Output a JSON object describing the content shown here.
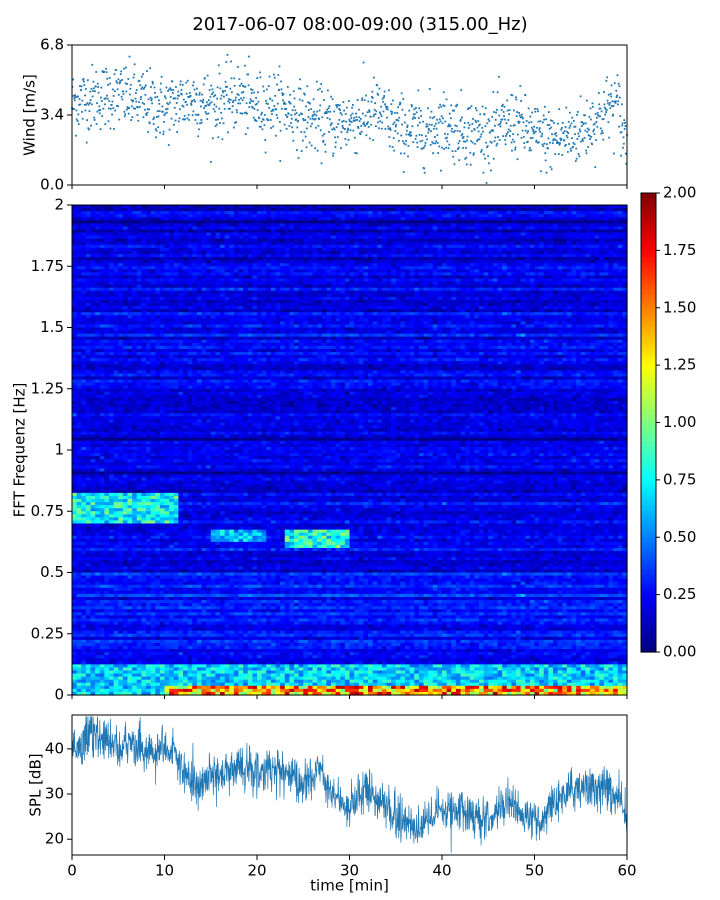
{
  "figure": {
    "title": "2017-06-07 08:00-09:00 (315.00_Hz)"
  },
  "chart_data": [
    {
      "panel": "wind",
      "type": "scatter",
      "ylabel": "Wind [m/s]",
      "ylim": [
        0.0,
        6.8
      ],
      "yticks": [
        0.0,
        3.4,
        6.8
      ],
      "ytick_labels": [
        "0.0",
        "3.4",
        "6.8"
      ],
      "xlim": [
        0,
        60
      ],
      "marker_color": "#1f77b4",
      "trend": {
        "x": [
          0,
          3,
          5,
          8,
          10,
          13,
          15,
          18,
          20,
          22,
          25,
          28,
          30,
          32,
          33,
          35,
          38,
          40,
          42,
          45,
          47,
          48,
          50,
          52,
          55,
          57,
          58,
          59,
          60
        ],
        "y": [
          4.0,
          4.3,
          4.4,
          4.0,
          3.7,
          4.2,
          3.9,
          4.3,
          3.8,
          4.0,
          3.3,
          3.0,
          3.1,
          3.4,
          3.6,
          2.8,
          2.6,
          3.0,
          2.7,
          2.5,
          2.9,
          3.1,
          2.4,
          2.2,
          2.6,
          3.3,
          3.8,
          3.9,
          1.8
        ]
      },
      "spread": 0.8
    },
    {
      "panel": "spectrogram",
      "type": "heatmap",
      "ylabel": "FFT Frequenz [Hz]",
      "ylim": [
        0,
        2
      ],
      "yticks": [
        0,
        0.25,
        0.5,
        0.75,
        1,
        1.25,
        1.5,
        1.75,
        2
      ],
      "ytick_labels": [
        "0",
        "0.25",
        "0.5",
        "0.75",
        "1",
        "1.25",
        "1.5",
        "1.75",
        "2"
      ],
      "xlim": [
        0,
        60
      ],
      "colormap": "jet",
      "colorbar": {
        "range": [
          0.0,
          2.0
        ],
        "ticks": [
          0.0,
          0.25,
          0.5,
          0.75,
          1.0,
          1.25,
          1.5,
          1.75,
          2.0
        ],
        "tick_labels": [
          "0.00",
          "0.25",
          "0.50",
          "0.75",
          "1.00",
          "1.25",
          "1.50",
          "1.75",
          "2.00"
        ]
      },
      "background_level": 0.2,
      "features": [
        {
          "t0": 0,
          "t1": 11.5,
          "f0": 0.7,
          "f1": 0.82,
          "level": 0.85
        },
        {
          "t0": 15,
          "t1": 21,
          "f0": 0.62,
          "f1": 0.68,
          "level": 0.7
        },
        {
          "t0": 23,
          "t1": 30,
          "f0": 0.6,
          "f1": 0.68,
          "level": 0.9
        },
        {
          "t0": 0,
          "t1": 60,
          "f0": 0,
          "f1": 0.12,
          "level": 0.75
        },
        {
          "t0": 10,
          "t1": 60,
          "f0": 0,
          "f1": 0.04,
          "level": 1.6
        }
      ]
    },
    {
      "panel": "spl",
      "type": "line",
      "ylabel": "SPL [dB]",
      "xlabel": "time [min]",
      "xlim": [
        0,
        60
      ],
      "ylim": [
        16.5,
        47.5
      ],
      "yticks": [
        20,
        30,
        40
      ],
      "ytick_labels": [
        "20",
        "30",
        "40"
      ],
      "xticks": [
        0,
        10,
        20,
        30,
        40,
        50,
        60
      ],
      "xtick_labels": [
        "0",
        "10",
        "20",
        "30",
        "40",
        "50",
        "60"
      ],
      "line_color": "#1f77b4",
      "trend": {
        "x": [
          0,
          2,
          5,
          8,
          10,
          11,
          12,
          13,
          15,
          18,
          20,
          23,
          25,
          27,
          28,
          30,
          32,
          34,
          35,
          37,
          38,
          40,
          42,
          45,
          47,
          48,
          50,
          52,
          55,
          58,
          59,
          60
        ],
        "y": [
          40,
          43,
          41,
          39.5,
          40,
          39,
          35,
          32,
          34,
          36,
          35,
          34.5,
          32,
          36,
          30,
          27.5,
          31,
          27,
          25,
          23,
          24,
          26,
          27,
          24,
          29,
          27,
          23,
          28,
          32,
          31,
          29,
          25
        ]
      },
      "spread": 3.5
    }
  ]
}
